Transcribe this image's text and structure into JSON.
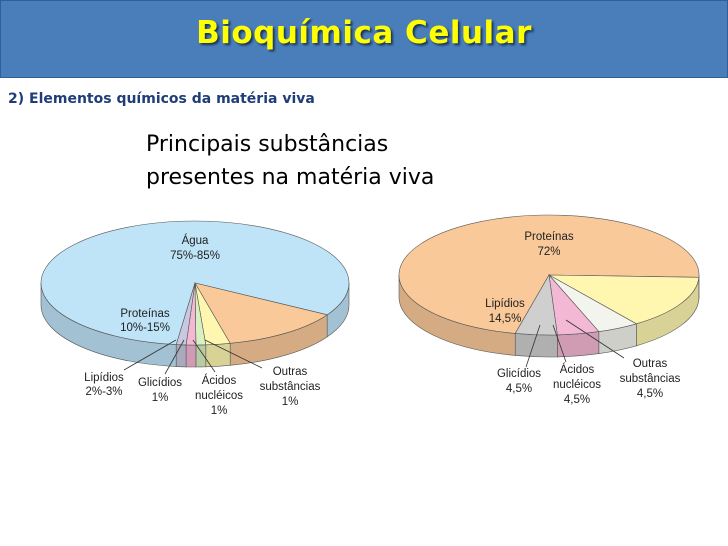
{
  "header": {
    "title": "Bioquímica Celular"
  },
  "section": {
    "title": "2) Elementos químicos da matéria viva"
  },
  "heading": {
    "line1": "Principais substâncias",
    "line2": "presentes na matéria viva"
  },
  "chart_data": [
    {
      "type": "pie",
      "title": "",
      "slices": [
        {
          "label": "Água",
          "value_label": "75%-85%",
          "value": 80,
          "color": "#bfe3f7"
        },
        {
          "label": "Proteínas",
          "value_label": "10%-15%",
          "value": 12.5,
          "color": "#f9c99a"
        },
        {
          "label": "Lipídios",
          "value_label": "2%-3%",
          "value": 2.5,
          "color": "#fff7b0"
        },
        {
          "label": "Glicídios",
          "value_label": "1%",
          "value": 1,
          "color": "#d9f0c0"
        },
        {
          "label": "Ácidos nucléicos",
          "value_label": "1%",
          "value": 1,
          "color": "#f3b8d4"
        },
        {
          "label": "Outras substâncias",
          "value_label": "1%",
          "value": 1,
          "color": "#c8c8e0"
        }
      ]
    },
    {
      "type": "pie",
      "title": "",
      "slices": [
        {
          "label": "Proteínas",
          "value_label": "72%",
          "value": 72,
          "color": "#f9c99a"
        },
        {
          "label": "Lipídios",
          "value_label": "14,5%",
          "value": 14.5,
          "color": "#fff7b0"
        },
        {
          "label": "Glicídios",
          "value_label": "4,5%",
          "value": 4.5,
          "color": "#f4f4ee"
        },
        {
          "label": "Ácidos nucléicos",
          "value_label": "4,5%",
          "value": 4.5,
          "color": "#f3b8d4"
        },
        {
          "label": "Outras substâncias",
          "value_label": "4,5%",
          "value": 4.5,
          "color": "#cfcfcf"
        }
      ]
    }
  ]
}
